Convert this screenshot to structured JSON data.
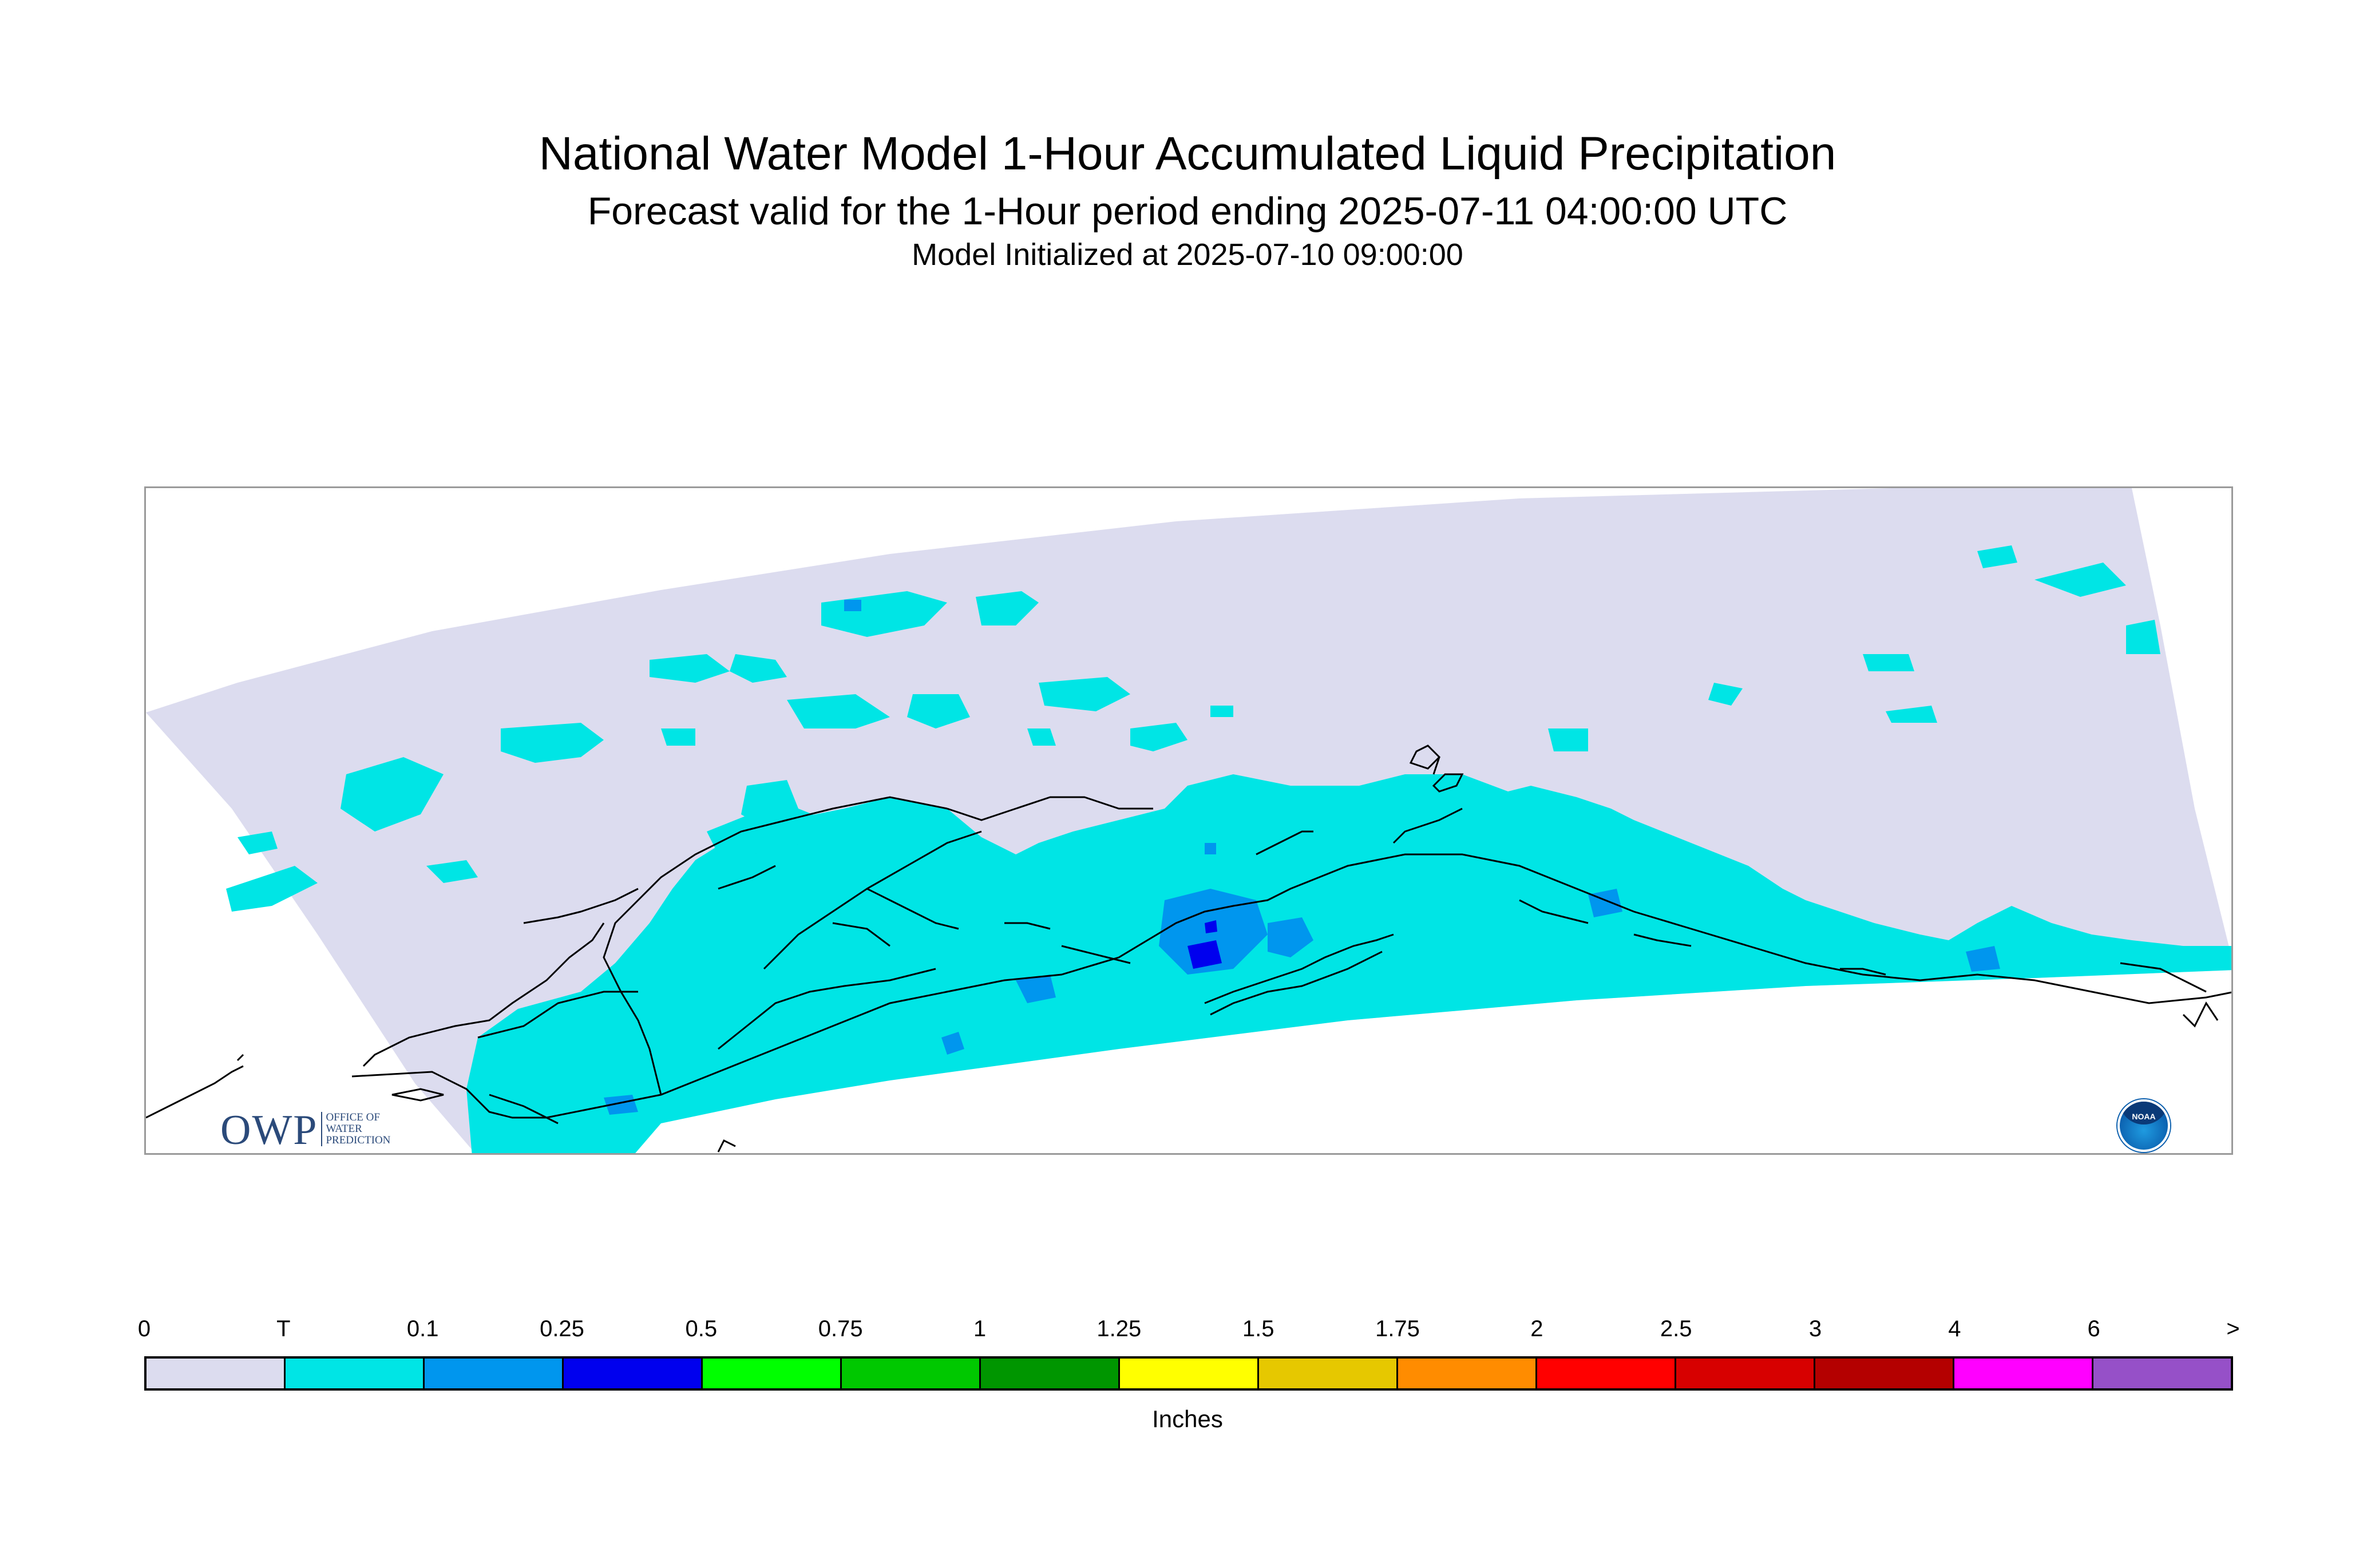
{
  "title": "National Water Model 1-Hour Accumulated Liquid Precipitation",
  "subtitle": "Forecast valid for the 1-Hour period ending 2025-07-11 04:00:00 UTC",
  "init_line": "Model Initialized at 2025-07-10 09:00:00",
  "map": {
    "domain_fill_color": "#dcdcef",
    "trace_color": "#00e5e5",
    "light_color": "#0096ee",
    "heavy_color": "#0000ee",
    "coastline_color": "#000000"
  },
  "logo_owp": {
    "big": "OWP",
    "line1": "OFFICE OF",
    "line2": "WATER",
    "line3": "PREDICTION"
  },
  "logo_noaa": {
    "text": "NOAA",
    "icon": "noaa-logo-icon"
  },
  "legend": {
    "ticks": [
      "0",
      "T",
      "0.1",
      "0.25",
      "0.5",
      "0.75",
      "1",
      "1.25",
      "1.5",
      "1.75",
      "2",
      "2.5",
      "3",
      "4",
      "6",
      ">"
    ],
    "colors": [
      "#dcdcef",
      "#00e5e5",
      "#0096ee",
      "#0000ee",
      "#00ff00",
      "#00c800",
      "#009600",
      "#ffff00",
      "#e6c800",
      "#ff8c00",
      "#ff0000",
      "#d70000",
      "#b40000",
      "#ff00ff",
      "#9650c8"
    ],
    "units": "Inches"
  }
}
